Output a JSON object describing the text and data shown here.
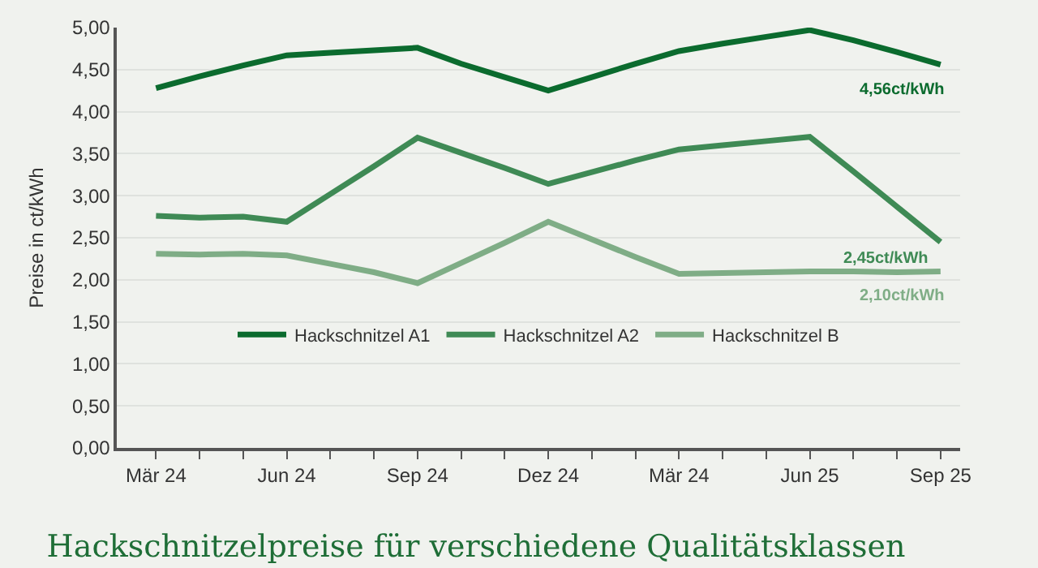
{
  "chart_data": {
    "type": "line",
    "title": "Hackschnitzelpreise für verschiedene Qualitätsklassen",
    "ylabel": "Preise in ct/kWh",
    "categories": [
      "Mär 24",
      null,
      null,
      "Jun 24",
      null,
      null,
      "Sep 24",
      null,
      null,
      "Dez 24",
      null,
      null,
      "Mär 24",
      null,
      null,
      "Jun 25",
      null,
      null,
      "Sep 25"
    ],
    "series": [
      {
        "name": "Hackschnitzel A1",
        "color": "#0b6b2e",
        "values": [
          4.28,
          4.42,
          4.55,
          4.67,
          4.7,
          4.73,
          4.76,
          4.57,
          4.41,
          4.25,
          4.41,
          4.57,
          4.72,
          4.81,
          4.89,
          4.97,
          4.85,
          4.71,
          4.56
        ]
      },
      {
        "name": "Hackschnitzel A2",
        "color": "#3f8a55",
        "values": [
          2.76,
          2.74,
          2.75,
          2.69,
          3.02,
          3.35,
          3.69,
          3.51,
          3.33,
          3.14,
          3.28,
          3.42,
          3.55,
          3.6,
          3.65,
          3.7,
          3.29,
          2.87,
          2.45
        ]
      },
      {
        "name": "Hackschnitzel B",
        "color": "#7fad86",
        "values": [
          2.31,
          2.3,
          2.31,
          2.29,
          2.19,
          2.09,
          1.96,
          2.2,
          2.44,
          2.69,
          2.48,
          2.27,
          2.07,
          2.08,
          2.09,
          2.1,
          2.1,
          2.09,
          2.1
        ]
      }
    ],
    "ylim": [
      0,
      5
    ],
    "yticks": [
      {
        "value": 0,
        "label": "0,00"
      },
      {
        "value": 0.5,
        "label": "0,50"
      },
      {
        "value": 1,
        "label": "1,00"
      },
      {
        "value": 1.5,
        "label": "1,50"
      },
      {
        "value": 2,
        "label": "2,00"
      },
      {
        "value": 2.5,
        "label": "2,50"
      },
      {
        "value": 3,
        "label": "3,00"
      },
      {
        "value": 3.5,
        "label": "3,50"
      },
      {
        "value": 4,
        "label": "4,00"
      },
      {
        "value": 4.5,
        "label": "4,50"
      },
      {
        "value": 5,
        "label": "5,00"
      }
    ],
    "annotations": [
      {
        "text": "4,56ct/kWh",
        "x": "Sep 25",
        "y": 4.56
      },
      {
        "text": "2,45ct/kWh",
        "x": "Sep 25",
        "y": 2.45
      },
      {
        "text": "2,10ct/kWh",
        "x": "Sep 25",
        "y": 2.1
      }
    ],
    "grid": "y",
    "legend": "bottom",
    "marker": "none",
    "line_style": "solid"
  }
}
